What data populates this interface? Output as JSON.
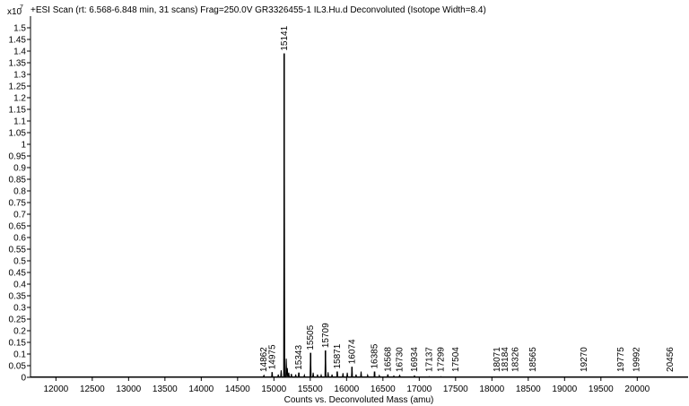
{
  "chart_data": {
    "type": "line",
    "title": "+ESI Scan (rt: 6.568-6.848 min, 31 scans) Frag=250.0V GR3326455-1 IL3.Hu.d  Deconvoluted (Isotope Width=8.4)",
    "multiplier_base": "x10",
    "multiplier_exp": "7",
    "xlabel": "Counts vs. Deconvoluted Mass (amu)",
    "ylabel": "",
    "xlim": [
      11650,
      20700
    ],
    "ylim": [
      0,
      1.55
    ],
    "x_ticks": [
      12000,
      12500,
      13000,
      13500,
      14000,
      14500,
      15000,
      15500,
      16000,
      16500,
      17000,
      17500,
      18000,
      18500,
      19000,
      19500,
      20000
    ],
    "y_ticks": [
      "0",
      "0.05",
      "0.1",
      "0.15",
      "0.2",
      "0.25",
      "0.3",
      "0.35",
      "0.4",
      "0.45",
      "0.5",
      "0.55",
      "0.6",
      "0.65",
      "0.7",
      "0.75",
      "0.8",
      "0.85",
      "0.9",
      "0.95",
      "1",
      "1.05",
      "1.1",
      "1.15",
      "1.2",
      "1.25",
      "1.3",
      "1.35",
      "1.4",
      "1.45",
      "1.5"
    ],
    "peaks": [
      {
        "mass": 14862,
        "intensity": 0.008,
        "label": "14862"
      },
      {
        "mass": 14975,
        "intensity": 0.022,
        "label": "14975"
      },
      {
        "mass": 15141,
        "intensity": 1.39,
        "label": "15141"
      },
      {
        "mass": 15343,
        "intensity": 0.02,
        "label": "15343"
      },
      {
        "mass": 15505,
        "intensity": 0.105,
        "label": "15505"
      },
      {
        "mass": 15709,
        "intensity": 0.115,
        "label": "15709"
      },
      {
        "mass": 15871,
        "intensity": 0.025,
        "label": "15871"
      },
      {
        "mass": 16074,
        "intensity": 0.045,
        "label": "16074"
      },
      {
        "mass": 16385,
        "intensity": 0.025,
        "label": "16385"
      },
      {
        "mass": 16568,
        "intensity": 0.012,
        "label": "16568"
      },
      {
        "mass": 16730,
        "intensity": 0.008,
        "label": "16730"
      },
      {
        "mass": 16934,
        "intensity": 0.006,
        "label": "16934"
      },
      {
        "mass": 17137,
        "intensity": 0.003,
        "label": "17137"
      },
      {
        "mass": 17299,
        "intensity": 0.003,
        "label": "17299"
      },
      {
        "mass": 17504,
        "intensity": 0.002,
        "label": "17504"
      },
      {
        "mass": 18071,
        "intensity": 0.002,
        "label": "18071"
      },
      {
        "mass": 18184,
        "intensity": 0.002,
        "label": "18184"
      },
      {
        "mass": 18326,
        "intensity": 0.002,
        "label": "18326"
      },
      {
        "mass": 18565,
        "intensity": 0.002,
        "label": "18565"
      },
      {
        "mass": 19270,
        "intensity": 0.002,
        "label": "19270"
      },
      {
        "mass": 19775,
        "intensity": 0.002,
        "label": "19775"
      },
      {
        "mass": 19992,
        "intensity": 0.002,
        "label": "19992"
      },
      {
        "mass": 20456,
        "intensity": 0.002,
        "label": "20456"
      }
    ],
    "minor_peaks": [
      {
        "mass": 15060,
        "intensity": 0.012
      },
      {
        "mass": 15100,
        "intensity": 0.03
      },
      {
        "mass": 15170,
        "intensity": 0.08
      },
      {
        "mass": 15185,
        "intensity": 0.04
      },
      {
        "mass": 15205,
        "intensity": 0.02
      },
      {
        "mass": 15240,
        "intensity": 0.015
      },
      {
        "mass": 15300,
        "intensity": 0.012
      },
      {
        "mass": 15420,
        "intensity": 0.01
      },
      {
        "mass": 15540,
        "intensity": 0.02
      },
      {
        "mass": 15600,
        "intensity": 0.012
      },
      {
        "mass": 15650,
        "intensity": 0.01
      },
      {
        "mass": 15745,
        "intensity": 0.022
      },
      {
        "mass": 15800,
        "intensity": 0.012
      },
      {
        "mass": 15950,
        "intensity": 0.018
      },
      {
        "mass": 16010,
        "intensity": 0.02
      },
      {
        "mass": 16130,
        "intensity": 0.012
      },
      {
        "mass": 16200,
        "intensity": 0.025
      },
      {
        "mass": 16290,
        "intensity": 0.01
      },
      {
        "mass": 16450,
        "intensity": 0.008
      },
      {
        "mass": 16650,
        "intensity": 0.006
      }
    ],
    "grid": false,
    "legend": "none",
    "colors": {
      "trace": "#000000",
      "axis": "#000000",
      "background": "#ffffff"
    }
  }
}
